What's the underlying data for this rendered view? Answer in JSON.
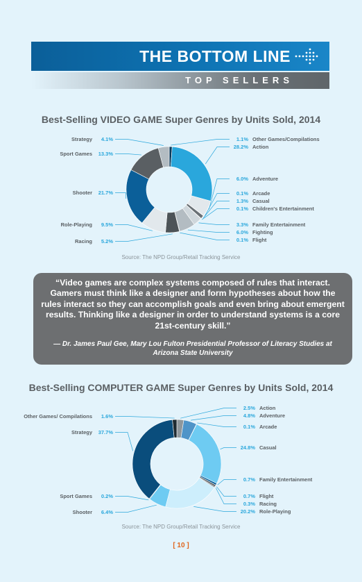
{
  "header": {
    "title": "THE BOTTOM LINE",
    "subtitle": "TOP SELLERS"
  },
  "chart_data": [
    {
      "type": "pie",
      "title": "Best-Selling VIDEO GAME Super Genres by Units Sold, 2014",
      "source": "Source: The NPD Group/Retail Tracking Service",
      "slices": [
        {
          "label": "Other Games/Compilations",
          "value": 1.1,
          "pct_text": "1.1%",
          "color": "#0a3a5a"
        },
        {
          "label": "Action",
          "value": 28.2,
          "pct_text": "28.2%",
          "color": "#2aa7dc"
        },
        {
          "label": "Adventure",
          "value": 6.0,
          "pct_text": "6.0%",
          "color": "#e2e8ec"
        },
        {
          "label": "Arcade",
          "value": 0.1,
          "pct_text": "0.1%",
          "color": "#8f979c"
        },
        {
          "label": "Casual",
          "value": 1.3,
          "pct_text": "1.3%",
          "color": "#6a7176"
        },
        {
          "label": "Children's Entertainment",
          "value": 0.1,
          "pct_text": "0.1%",
          "color": "#3a4044"
        },
        {
          "label": "Family Entertainment",
          "value": 3.3,
          "pct_text": "3.3%",
          "color": "#cfd7dc"
        },
        {
          "label": "Fighting",
          "value": 6.0,
          "pct_text": "6.0%",
          "color": "#b3bcc2"
        },
        {
          "label": "Flight",
          "value": 0.1,
          "pct_text": "0.1%",
          "color": "#5f6569"
        },
        {
          "label": "Racing",
          "value": 5.2,
          "pct_text": "5.2%",
          "color": "#4d5357"
        },
        {
          "label": "Role-Playing",
          "value": 9.5,
          "pct_text": "9.5%",
          "color": "#e2e8ec"
        },
        {
          "label": "Shooter",
          "value": 21.7,
          "pct_text": "21.7%",
          "color": "#0b5f99"
        },
        {
          "label": "Sport Games",
          "value": 13.3,
          "pct_text": "13.3%",
          "color": "#5a5f63"
        },
        {
          "label": "Strategy",
          "value": 4.1,
          "pct_text": "4.1%",
          "color": "#b3bcc2"
        }
      ]
    },
    {
      "type": "pie",
      "title": "Best-Selling COMPUTER GAME Super Genres by Units Sold, 2014",
      "source": "Source: The NPD Group/Retail Tracking Service",
      "slices": [
        {
          "label": "Action",
          "value": 2.5,
          "pct_text": "2.5%",
          "color": "#8f979c"
        },
        {
          "label": "Adventure",
          "value": 4.8,
          "pct_text": "4.8%",
          "color": "#4f94c8"
        },
        {
          "label": "Arcade",
          "value": 0.1,
          "pct_text": "0.1%",
          "color": "#0b5f99"
        },
        {
          "label": "Casual",
          "value": 24.8,
          "pct_text": "24.8%",
          "color": "#6ecbf2"
        },
        {
          "label": "Family Entertainment",
          "value": 0.7,
          "pct_text": "0.7%",
          "color": "#0b5f99"
        },
        {
          "label": "Flight",
          "value": 0.7,
          "pct_text": "0.7%",
          "color": "#5f6569"
        },
        {
          "label": "Racing",
          "value": 0.3,
          "pct_text": "0.3%",
          "color": "#3a4044"
        },
        {
          "label": "Role-Playing",
          "value": 20.2,
          "pct_text": "20.2%",
          "color": "#cdeefc"
        },
        {
          "label": "Shooter",
          "value": 6.4,
          "pct_text": "6.4%",
          "color": "#6ecbf2"
        },
        {
          "label": "Sport Games",
          "value": 0.2,
          "pct_text": "0.2%",
          "color": "#0a3a5a"
        },
        {
          "label": "Strategy",
          "value": 37.7,
          "pct_text": "37.7%",
          "color": "#0a4d7c"
        },
        {
          "label": "Other Games/ Compilations",
          "value": 1.6,
          "pct_text": "1.6%",
          "color": "#1f2a31"
        }
      ]
    }
  ],
  "quote": {
    "text": "“Video games are complex systems composed of rules that interact. Gamers must think like a designer and form hypotheses about how the rules interact so they can accomplish goals and even bring about emergent results. Thinking like a designer in order to understand systems is a core 21st-century skill.”",
    "attribution": "— Dr. James Paul Gee, Mary Lou Fulton Presidential Professor of Literacy Studies at Arizona State University"
  },
  "page_number": "[ 10 ]"
}
